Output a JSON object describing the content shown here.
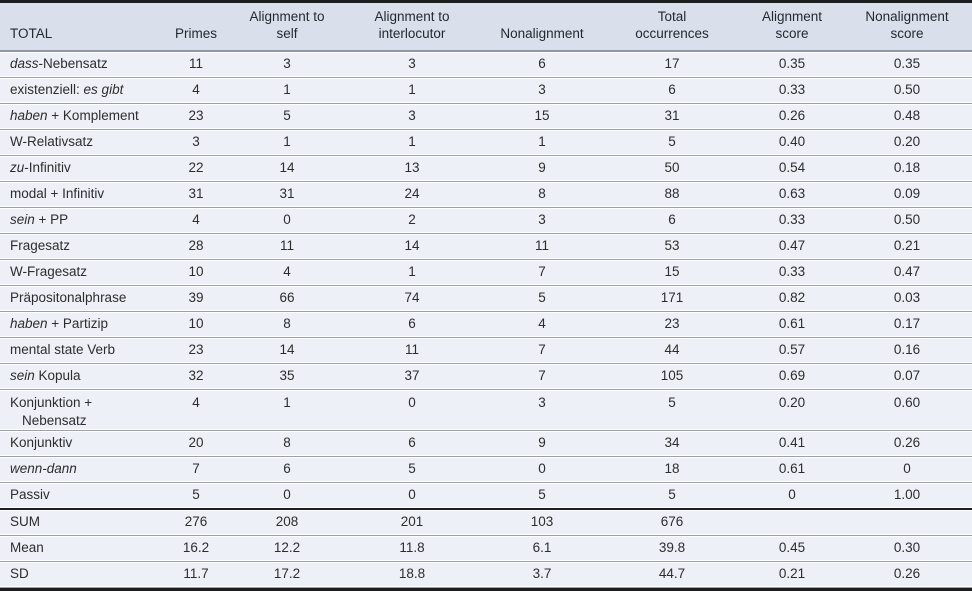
{
  "colors": {
    "header_bg": "#d9dfeb",
    "row_bg": "#edf0f6",
    "row_separator": "#9aa1ad",
    "header_rule": "#8e96a5",
    "frame": "#1d1d1d",
    "text": "#2d2d2d"
  },
  "table": {
    "headers": [
      "TOTAL",
      "Primes",
      "Alignment to\nself",
      "Alignment to\ninterlocutor",
      "Nonalignment",
      "Total\noccurrences",
      "Alignment\nscore",
      "Nonalignment\nscore"
    ],
    "rows": [
      {
        "label": "dass-Nebensatz",
        "label_parts": [
          {
            "text": "dass",
            "italic": true
          },
          {
            "text": "-Nebensatz",
            "italic": false
          }
        ],
        "values": [
          "11",
          "3",
          "3",
          "6",
          "17",
          "0.35",
          "0.35"
        ]
      },
      {
        "label": "existenziell: es gibt",
        "label_parts": [
          {
            "text": "existenziell: ",
            "italic": false
          },
          {
            "text": "es gibt",
            "italic": true
          }
        ],
        "values": [
          "4",
          "1",
          "1",
          "3",
          "6",
          "0.33",
          "0.50"
        ]
      },
      {
        "label": "haben + Komplement",
        "label_parts": [
          {
            "text": "haben",
            "italic": true
          },
          {
            "text": " + Komplement",
            "italic": false
          }
        ],
        "values": [
          "23",
          "5",
          "3",
          "15",
          "31",
          "0.26",
          "0.48"
        ]
      },
      {
        "label": "W-Relativsatz",
        "label_parts": [
          {
            "text": "W-Relativsatz",
            "italic": false
          }
        ],
        "values": [
          "3",
          "1",
          "1",
          "1",
          "5",
          "0.40",
          "0.20"
        ]
      },
      {
        "label": "zu-Infinitiv",
        "label_parts": [
          {
            "text": "zu",
            "italic": true
          },
          {
            "text": "-Infinitiv",
            "italic": false
          }
        ],
        "values": [
          "22",
          "14",
          "13",
          "9",
          "50",
          "0.54",
          "0.18"
        ]
      },
      {
        "label": "modal + Infinitiv",
        "label_parts": [
          {
            "text": "modal + Infinitiv",
            "italic": false
          }
        ],
        "values": [
          "31",
          "31",
          "24",
          "8",
          "88",
          "0.63",
          "0.09"
        ]
      },
      {
        "label": "sein + PP",
        "label_parts": [
          {
            "text": "sein",
            "italic": true
          },
          {
            "text": " + PP",
            "italic": false
          }
        ],
        "values": [
          "4",
          "0",
          "2",
          "3",
          "6",
          "0.33",
          "0.50"
        ]
      },
      {
        "label": "Fragesatz",
        "label_parts": [
          {
            "text": "Fragesatz",
            "italic": false
          }
        ],
        "values": [
          "28",
          "11",
          "14",
          "11",
          "53",
          "0.47",
          "0.21"
        ]
      },
      {
        "label": "W-Fragesatz",
        "label_parts": [
          {
            "text": "W-Fragesatz",
            "italic": false
          }
        ],
        "values": [
          "10",
          "4",
          "1",
          "7",
          "15",
          "0.33",
          "0.47"
        ]
      },
      {
        "label": "Präpositonalphrase",
        "label_parts": [
          {
            "text": "Präpositonalphrase",
            "italic": false
          }
        ],
        "values": [
          "39",
          "66",
          "74",
          "5",
          "171",
          "0.82",
          "0.03"
        ]
      },
      {
        "label": "haben + Partizip",
        "label_parts": [
          {
            "text": "haben",
            "italic": true
          },
          {
            "text": " + Partizip",
            "italic": false
          }
        ],
        "values": [
          "10",
          "8",
          "6",
          "4",
          "23",
          "0.61",
          "0.17"
        ]
      },
      {
        "label": "mental state Verb",
        "label_parts": [
          {
            "text": "mental state Verb",
            "italic": false
          }
        ],
        "values": [
          "23",
          "14",
          "11",
          "7",
          "44",
          "0.57",
          "0.16"
        ]
      },
      {
        "label": "sein Kopula",
        "label_parts": [
          {
            "text": "sein",
            "italic": true
          },
          {
            "text": " Kopula",
            "italic": false
          }
        ],
        "values": [
          "32",
          "35",
          "37",
          "7",
          "105",
          "0.69",
          "0.07"
        ]
      },
      {
        "label": "Konjunktion + Nebensatz",
        "label_parts": [
          {
            "text": "Konjunktion + Nebensatz",
            "italic": false
          }
        ],
        "tall": true,
        "values": [
          "4",
          "1",
          "0",
          "3",
          "5",
          "0.20",
          "0.60"
        ]
      },
      {
        "label": "Konjunktiv",
        "label_parts": [
          {
            "text": "Konjunktiv",
            "italic": false
          }
        ],
        "values": [
          "20",
          "8",
          "6",
          "9",
          "34",
          "0.41",
          "0.26"
        ]
      },
      {
        "label": "wenn-dann",
        "label_parts": [
          {
            "text": "wenn-dann",
            "italic": true
          }
        ],
        "values": [
          "7",
          "6",
          "5",
          "0",
          "18",
          "0.61",
          "0"
        ]
      },
      {
        "label": "Passiv",
        "label_parts": [
          {
            "text": "Passiv",
            "italic": false
          }
        ],
        "section_end": true,
        "values": [
          "5",
          "0",
          "0",
          "5",
          "5",
          "0",
          "1.00"
        ]
      },
      {
        "label": "SUM",
        "label_parts": [
          {
            "text": "SUM",
            "italic": false
          }
        ],
        "values": [
          "276",
          "208",
          "201",
          "103",
          "676",
          "",
          ""
        ]
      },
      {
        "label": "Mean",
        "label_parts": [
          {
            "text": "Mean",
            "italic": false
          }
        ],
        "values": [
          "16.2",
          "12.2",
          "11.8",
          "6.1",
          "39.8",
          "0.45",
          "0.30"
        ]
      },
      {
        "label": "SD",
        "label_parts": [
          {
            "text": "SD",
            "italic": false
          }
        ],
        "values": [
          "11.7",
          "17.2",
          "18.8",
          "3.7",
          "44.7",
          "0.21",
          "0.26"
        ]
      }
    ]
  }
}
